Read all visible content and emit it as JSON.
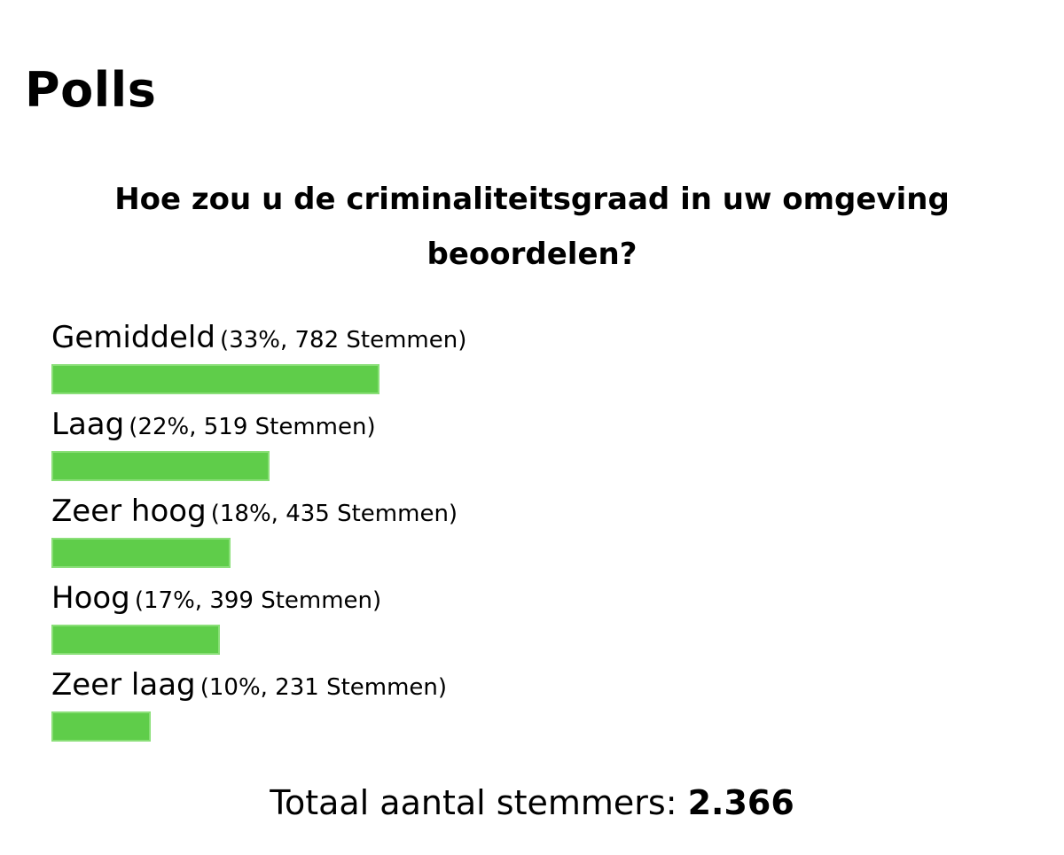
{
  "page": {
    "title": "Polls"
  },
  "poll": {
    "question": "Hoe zou u de criminaliteitsgraad in uw omgeving beoordelen?",
    "bar_color": "#5fcd4a",
    "options": [
      {
        "name": "Gemiddeld",
        "stats": "(33%, 782 Stemmen)",
        "percent": 33,
        "votes": 782,
        "leader": true
      },
      {
        "name": "Laag",
        "stats": "(22%, 519 Stemmen)",
        "percent": 22,
        "votes": 519,
        "leader": false
      },
      {
        "name": "Zeer hoog",
        "stats": "(18%, 435 Stemmen)",
        "percent": 18,
        "votes": 435,
        "leader": false
      },
      {
        "name": "Hoog",
        "stats": "(17%, 399 Stemmen)",
        "percent": 17,
        "votes": 399,
        "leader": false
      },
      {
        "name": "Zeer laag",
        "stats": "(10%, 231 Stemmen)",
        "percent": 10,
        "votes": 231,
        "leader": false
      }
    ],
    "total_label": "Totaal aantal stemmers:",
    "total_value": "2.366"
  }
}
